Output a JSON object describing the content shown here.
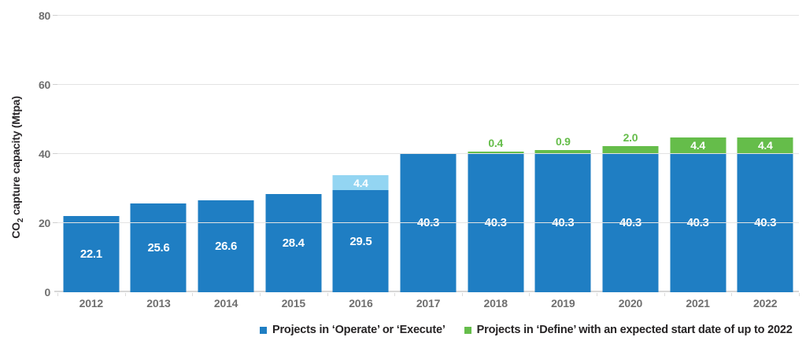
{
  "chart_data": {
    "type": "bar",
    "stacked": true,
    "ylabel_parts": {
      "prefix": "CO",
      "sub": "2",
      "suffix": " capture capacity (Mtpa)"
    },
    "ylim": [
      0,
      80
    ],
    "yticks": [
      0,
      20,
      40,
      60,
      80
    ],
    "gridlines_at": [
      20,
      40,
      60,
      80
    ],
    "grid": true,
    "legend_position": "bottom",
    "categories": [
      "2012",
      "2013",
      "2014",
      "2015",
      "2016",
      "2017",
      "2018",
      "2019",
      "2020",
      "2021",
      "2022"
    ],
    "series": [
      {
        "name": "Projects in ‘Operate’ or ‘Execute’",
        "color_key": "blue",
        "values": [
          22.1,
          25.6,
          26.6,
          28.4,
          29.5,
          40.3,
          40.3,
          40.3,
          40.3,
          40.3,
          40.3
        ]
      },
      {
        "name": "Projects in ‘Define’ with an expected start date of up to 2022",
        "color_key": "green",
        "values": [
          0,
          0,
          0,
          0,
          0,
          0,
          0.4,
          0.9,
          2.0,
          4.4,
          4.4
        ]
      }
    ],
    "bars": [
      {
        "year": "2012",
        "base": 22.1,
        "base_label": "22.1",
        "extra": 0,
        "extra_label": "",
        "extra_color_key": "",
        "extra_label_inside": false
      },
      {
        "year": "2013",
        "base": 25.6,
        "base_label": "25.6",
        "extra": 0,
        "extra_label": "",
        "extra_color_key": "",
        "extra_label_inside": false
      },
      {
        "year": "2014",
        "base": 26.6,
        "base_label": "26.6",
        "extra": 0,
        "extra_label": "",
        "extra_color_key": "",
        "extra_label_inside": false
      },
      {
        "year": "2015",
        "base": 28.4,
        "base_label": "28.4",
        "extra": 0,
        "extra_label": "",
        "extra_color_key": "",
        "extra_label_inside": false
      },
      {
        "year": "2016",
        "base": 29.5,
        "base_label": "29.5",
        "extra": 4.4,
        "extra_label": "4.4",
        "extra_color_key": "lightblue",
        "extra_label_inside": true
      },
      {
        "year": "2017",
        "base": 40.3,
        "base_label": "40.3",
        "extra": 0,
        "extra_label": "",
        "extra_color_key": "",
        "extra_label_inside": false
      },
      {
        "year": "2018",
        "base": 40.3,
        "base_label": "40.3",
        "extra": 0.4,
        "extra_label": "0.4",
        "extra_color_key": "green",
        "extra_label_inside": false
      },
      {
        "year": "2019",
        "base": 40.3,
        "base_label": "40.3",
        "extra": 0.9,
        "extra_label": "0.9",
        "extra_color_key": "green",
        "extra_label_inside": false
      },
      {
        "year": "2020",
        "base": 40.3,
        "base_label": "40.3",
        "extra": 2.0,
        "extra_label": "2.0",
        "extra_color_key": "green",
        "extra_label_inside": false
      },
      {
        "year": "2021",
        "base": 40.3,
        "base_label": "40.3",
        "extra": 4.4,
        "extra_label": "4.4",
        "extra_color_key": "green",
        "extra_label_inside": true
      },
      {
        "year": "2022",
        "base": 40.3,
        "base_label": "40.3",
        "extra": 4.4,
        "extra_label": "4.4",
        "extra_color_key": "green",
        "extra_label_inside": true
      }
    ]
  },
  "colors": {
    "blue": "#1f7ec3",
    "lightblue": "#93d5f2",
    "green": "#65bd4a",
    "grid": "#e3e3e3",
    "axis": "#d7d7d7",
    "tick_text": "#6f6f6f",
    "bar_label_text": "#ffffff"
  },
  "legend": {
    "items": [
      {
        "label": "Projects in ‘Operate’ or ‘Execute’",
        "color_key": "blue"
      },
      {
        "label": "Projects in ‘Define’ with an expected start date of up to 2022",
        "color_key": "green"
      }
    ]
  }
}
